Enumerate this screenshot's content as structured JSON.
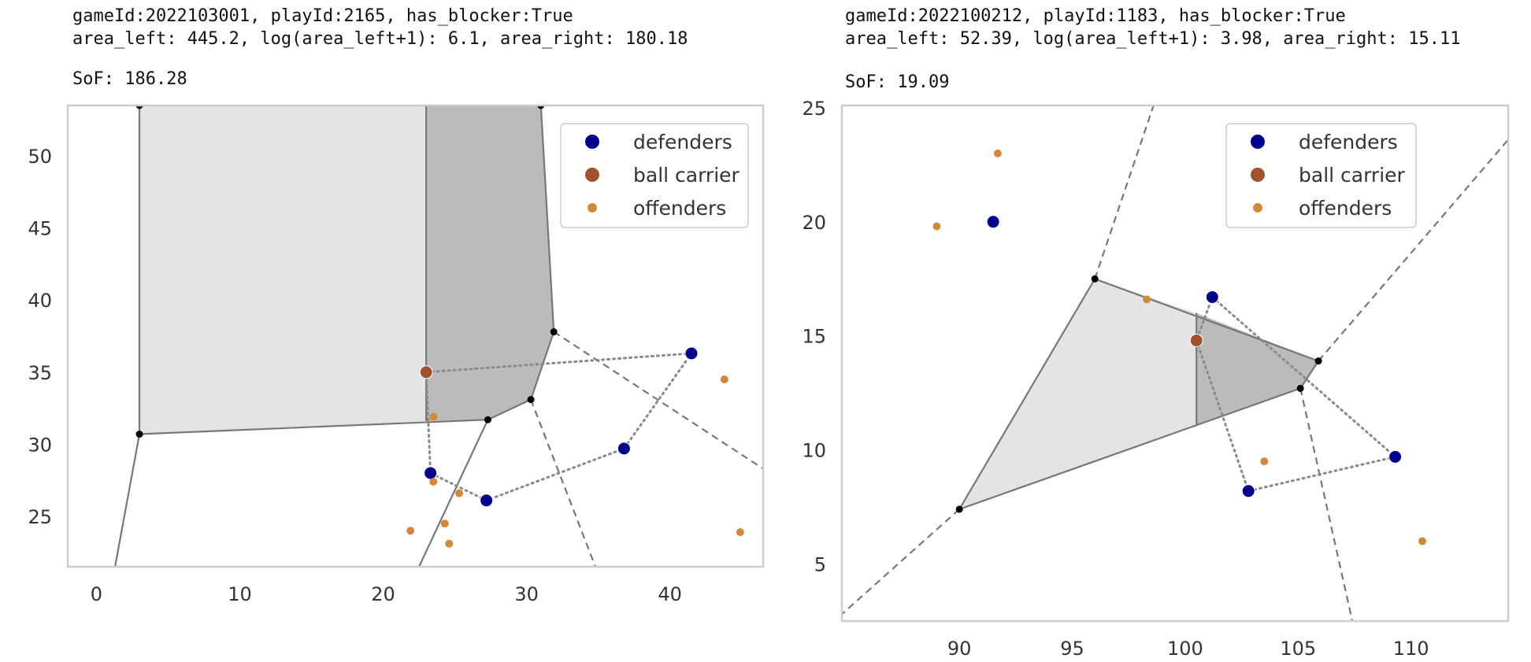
{
  "charts": [
    {
      "header_line1": "gameId:2022103001, playId:2165, has_blocker:True",
      "header_line2": "area_left: 445.2, log(area_left+1): 6.1, area_right: 180.18",
      "sof_label": "SoF: 186.28"
    },
    {
      "header_line1": "gameId:2022100212, playId:1183, has_blocker:True",
      "header_line2": "area_left: 52.39, log(area_left+1): 3.98, area_right: 15.11",
      "sof_label": "SoF: 19.09"
    }
  ],
  "chart_data": [
    {
      "type": "scatter",
      "title": "",
      "xlabel": "",
      "ylabel": "",
      "xlim": [
        -2,
        46.5
      ],
      "ylim": [
        21.5,
        53.5
      ],
      "xticks": [
        0,
        10,
        20,
        30,
        40
      ],
      "yticks": [
        25,
        30,
        35,
        40,
        45,
        50
      ],
      "grid": false,
      "legend": {
        "placement": "top-right",
        "entries": [
          "defenders",
          "ball carrier",
          "offenders"
        ]
      },
      "colors": {
        "defenders": "#00008b",
        "ball_carrier": "#a0522d",
        "offenders": "#d2893c",
        "region_left": "#e4e4e4",
        "region_right": "#bbbbbb",
        "edges": "#777777"
      },
      "series": [
        {
          "name": "defenders",
          "points": [
            [
              41.5,
              36.3
            ],
            [
              36.8,
              29.7
            ],
            [
              23.3,
              28.0
            ],
            [
              27.2,
              26.1
            ]
          ]
        },
        {
          "name": "ball carrier",
          "points": [
            [
              23.0,
              35.0
            ]
          ]
        },
        {
          "name": "offenders",
          "points": [
            [
              23.5,
              31.9
            ],
            [
              23.5,
              27.4
            ],
            [
              25.3,
              26.6
            ],
            [
              24.3,
              24.5
            ],
            [
              21.9,
              24.0
            ],
            [
              24.6,
              23.1
            ],
            [
              43.8,
              34.5
            ],
            [
              44.9,
              23.9
            ]
          ]
        }
      ],
      "region_left": [
        [
          3.0,
          53.5
        ],
        [
          23.0,
          53.5
        ],
        [
          23.0,
          31.6
        ],
        [
          3.0,
          30.7
        ]
      ],
      "region_right": [
        [
          23.0,
          53.5
        ],
        [
          31.0,
          53.5
        ],
        [
          31.9,
          37.8
        ],
        [
          30.3,
          33.1
        ],
        [
          27.3,
          31.7
        ],
        [
          23.0,
          31.6
        ]
      ],
      "vertices": [
        [
          3.0,
          53.5
        ],
        [
          31.0,
          53.5
        ],
        [
          3.0,
          30.7
        ],
        [
          31.9,
          37.8
        ],
        [
          30.3,
          33.1
        ],
        [
          27.3,
          31.7
        ]
      ],
      "solid_edges": [
        [
          [
            3.0,
            53.5
          ],
          [
            3.0,
            30.7
          ]
        ],
        [
          [
            3.0,
            30.7
          ],
          [
            27.3,
            31.7
          ]
        ],
        [
          [
            27.3,
            31.7
          ],
          [
            30.3,
            33.1
          ]
        ],
        [
          [
            30.3,
            33.1
          ],
          [
            31.9,
            37.8
          ]
        ],
        [
          [
            31.9,
            37.8
          ],
          [
            31.0,
            53.5
          ]
        ],
        [
          [
            23.0,
            53.5
          ],
          [
            23.0,
            31.6
          ]
        ],
        [
          [
            3.0,
            30.7
          ],
          [
            1.3,
            21.5
          ]
        ],
        [
          [
            27.3,
            31.7
          ],
          [
            22.5,
            21.5
          ]
        ]
      ],
      "dashed_edges": [
        [
          [
            31.9,
            37.8
          ],
          [
            46.5,
            28.3
          ]
        ],
        [
          [
            30.3,
            33.1
          ],
          [
            34.8,
            21.5
          ]
        ]
      ],
      "dotted_paths": [
        [
          [
            23.0,
            35.0
          ],
          [
            41.5,
            36.3
          ],
          [
            36.8,
            29.7
          ],
          [
            27.2,
            26.1
          ],
          [
            23.3,
            28.0
          ],
          [
            23.0,
            35.0
          ]
        ]
      ]
    },
    {
      "type": "scatter",
      "title": "",
      "xlabel": "",
      "ylabel": "",
      "xlim": [
        84.8,
        114.3
      ],
      "ylim": [
        2.5,
        25.1
      ],
      "xticks": [
        90,
        95,
        100,
        105,
        110
      ],
      "yticks": [
        5,
        10,
        15,
        20,
        25
      ],
      "grid": false,
      "legend": {
        "placement": "top-right",
        "entries": [
          "defenders",
          "ball carrier",
          "offenders"
        ]
      },
      "colors": {
        "defenders": "#00008b",
        "ball_carrier": "#a0522d",
        "offenders": "#d2893c",
        "region_left": "#e4e4e4",
        "region_right": "#bbbbbb",
        "edges": "#777777"
      },
      "series": [
        {
          "name": "defenders",
          "points": [
            [
              91.5,
              20.0
            ],
            [
              101.2,
              16.7
            ],
            [
              109.3,
              9.7
            ],
            [
              102.8,
              8.2
            ]
          ]
        },
        {
          "name": "ball carrier",
          "points": [
            [
              100.5,
              14.8
            ]
          ]
        },
        {
          "name": "offenders",
          "points": [
            [
              91.7,
              23.0
            ],
            [
              89.0,
              19.8
            ],
            [
              98.3,
              16.6
            ],
            [
              103.5,
              9.5
            ],
            [
              110.5,
              6.0
            ]
          ]
        }
      ],
      "region_left": [
        [
          96.0,
          17.5
        ],
        [
          100.5,
          16.0
        ],
        [
          100.5,
          11.1
        ],
        [
          90.0,
          7.4
        ]
      ],
      "region_right": [
        [
          100.5,
          16.0
        ],
        [
          105.9,
          13.9
        ],
        [
          105.1,
          12.7
        ],
        [
          100.5,
          11.1
        ]
      ],
      "vertices": [
        [
          96.0,
          17.5
        ],
        [
          105.9,
          13.9
        ],
        [
          105.1,
          12.7
        ],
        [
          90.0,
          7.4
        ]
      ],
      "solid_edges": [
        [
          [
            96.0,
            17.5
          ],
          [
            105.9,
            13.9
          ]
        ],
        [
          [
            105.9,
            13.9
          ],
          [
            105.1,
            12.7
          ]
        ],
        [
          [
            105.1,
            12.7
          ],
          [
            90.0,
            7.4
          ]
        ],
        [
          [
            90.0,
            7.4
          ],
          [
            96.0,
            17.5
          ]
        ],
        [
          [
            100.5,
            16.0
          ],
          [
            100.5,
            11.1
          ]
        ]
      ],
      "dashed_edges": [
        [
          [
            96.0,
            17.5
          ],
          [
            98.6,
            25.1
          ]
        ],
        [
          [
            105.9,
            13.9
          ],
          [
            114.3,
            23.6
          ]
        ],
        [
          [
            105.1,
            12.7
          ],
          [
            107.4,
            2.5
          ]
        ],
        [
          [
            90.0,
            7.4
          ],
          [
            84.8,
            2.8
          ]
        ]
      ],
      "dotted_paths": [
        [
          [
            100.5,
            14.8
          ],
          [
            102.8,
            8.2
          ],
          [
            109.3,
            9.7
          ],
          [
            101.2,
            16.7
          ],
          [
            100.5,
            14.8
          ]
        ]
      ]
    }
  ]
}
